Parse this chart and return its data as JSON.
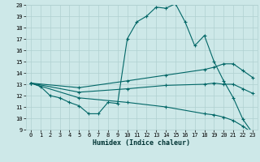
{
  "title": "",
  "xlabel": "Humidex (Indice chaleur)",
  "bg_color": "#cde8e8",
  "grid_color": "#b0d0d0",
  "line_color": "#006666",
  "xlim": [
    -0.5,
    23.5
  ],
  "ylim": [
    9,
    20
  ],
  "xticks": [
    0,
    1,
    2,
    3,
    4,
    5,
    6,
    7,
    8,
    9,
    10,
    11,
    12,
    13,
    14,
    15,
    16,
    17,
    18,
    19,
    20,
    21,
    22,
    23
  ],
  "yticks": [
    9,
    10,
    11,
    12,
    13,
    14,
    15,
    16,
    17,
    18,
    19,
    20
  ],
  "curve1_x": [
    0,
    1,
    2,
    3,
    4,
    5,
    6,
    7,
    8,
    9,
    10,
    11,
    12,
    13,
    14,
    15,
    16,
    17,
    18,
    19,
    20,
    21,
    22,
    23
  ],
  "curve1_y": [
    13.1,
    12.8,
    12.0,
    11.8,
    11.4,
    11.1,
    10.4,
    10.4,
    11.4,
    11.3,
    17.0,
    18.5,
    19.0,
    19.8,
    19.7,
    20.1,
    18.5,
    16.4,
    17.3,
    15.0,
    13.3,
    11.8,
    9.9,
    8.7
  ],
  "curve2_x": [
    0,
    5,
    10,
    14,
    18,
    19,
    20,
    21,
    22,
    23
  ],
  "curve2_y": [
    13.1,
    12.7,
    13.3,
    13.8,
    14.3,
    14.5,
    14.8,
    14.8,
    14.2,
    13.6
  ],
  "curve3_x": [
    0,
    5,
    10,
    14,
    18,
    19,
    20,
    21,
    22,
    23
  ],
  "curve3_y": [
    13.1,
    12.3,
    12.6,
    12.9,
    13.0,
    13.1,
    13.0,
    13.0,
    12.6,
    12.2
  ],
  "curve4_x": [
    0,
    5,
    10,
    14,
    18,
    19,
    20,
    21,
    22,
    23
  ],
  "curve4_y": [
    13.1,
    11.8,
    11.4,
    11.0,
    10.4,
    10.3,
    10.1,
    9.8,
    9.3,
    8.7
  ]
}
